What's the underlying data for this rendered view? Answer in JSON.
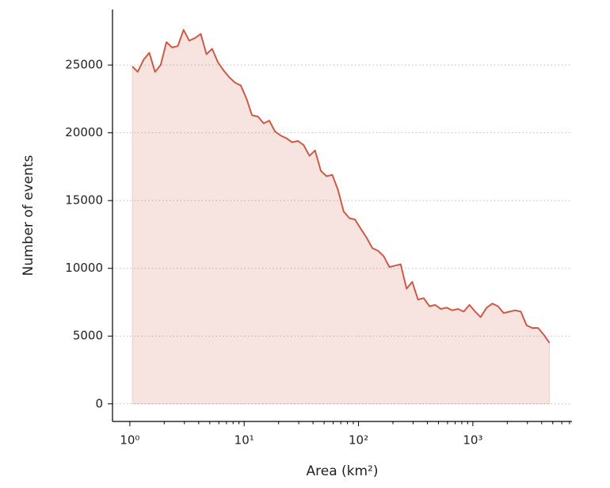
{
  "chart_data": {
    "type": "area",
    "xlabel": "Area (km²)",
    "ylabel": "Number of events",
    "x": [
      1.05,
      1.17,
      1.32,
      1.48,
      1.66,
      1.86,
      2.09,
      2.34,
      2.63,
      2.95,
      3.31,
      3.72,
      4.17,
      4.68,
      5.25,
      5.89,
      6.61,
      7.41,
      8.32,
      9.33,
      10.5,
      11.7,
      13.2,
      14.8,
      16.6,
      18.6,
      20.9,
      23.4,
      26.3,
      29.5,
      33.1,
      37.2,
      41.7,
      46.8,
      52.5,
      58.9,
      66.1,
      74.1,
      83.2,
      93.3,
      105,
      117,
      132,
      148,
      166,
      186,
      209,
      234,
      263,
      295,
      331,
      372,
      417,
      468,
      525,
      589,
      661,
      741,
      832,
      933,
      1050,
      1170,
      1320,
      1480,
      1660,
      1860,
      2090,
      2340,
      2630,
      2950,
      3310,
      3720,
      4170,
      4680
    ],
    "series": [
      {
        "color": "#cd5a45",
        "values": [
          24900,
          24500,
          25400,
          25900,
          24500,
          25000,
          26700,
          26300,
          26400,
          27600,
          26800,
          27000,
          27300,
          25800,
          26200,
          25200,
          24600,
          24100,
          23700,
          23500,
          22500,
          21300,
          21200,
          20700,
          20900,
          20100,
          19800,
          19600,
          19300,
          19400,
          19100,
          18300,
          18700,
          17200,
          16800,
          16900,
          15800,
          14200,
          13700,
          13600,
          12900,
          12300,
          11500,
          11300,
          10900,
          10100,
          10200,
          10300,
          8500,
          9000,
          7700,
          7800,
          7200,
          7300,
          7000,
          7100,
          6900,
          7000,
          6800,
          7300,
          6800,
          6400,
          7100,
          7400,
          7200,
          6700,
          6800,
          6900,
          6800,
          5800,
          5600,
          5600,
          5100,
          4500
        ]
      }
    ],
    "xscale": "log",
    "xlim": [
      0.705,
      7360
    ],
    "ylim": [
      -1300,
      29100
    ],
    "xticks": [
      {
        "value": 1,
        "label": "10⁰"
      },
      {
        "value": 10,
        "label": "10¹"
      },
      {
        "value": 100,
        "label": "10²"
      },
      {
        "value": 1000,
        "label": "10³"
      }
    ],
    "xminorticks": [
      2,
      3,
      4,
      5,
      6,
      7,
      8,
      9,
      20,
      30,
      40,
      50,
      60,
      70,
      80,
      90,
      200,
      300,
      400,
      500,
      600,
      700,
      800,
      900,
      2000,
      3000,
      4000,
      5000,
      6000,
      7000
    ],
    "yticks": [
      0,
      5000,
      10000,
      15000,
      20000,
      25000
    ],
    "grid": true
  }
}
